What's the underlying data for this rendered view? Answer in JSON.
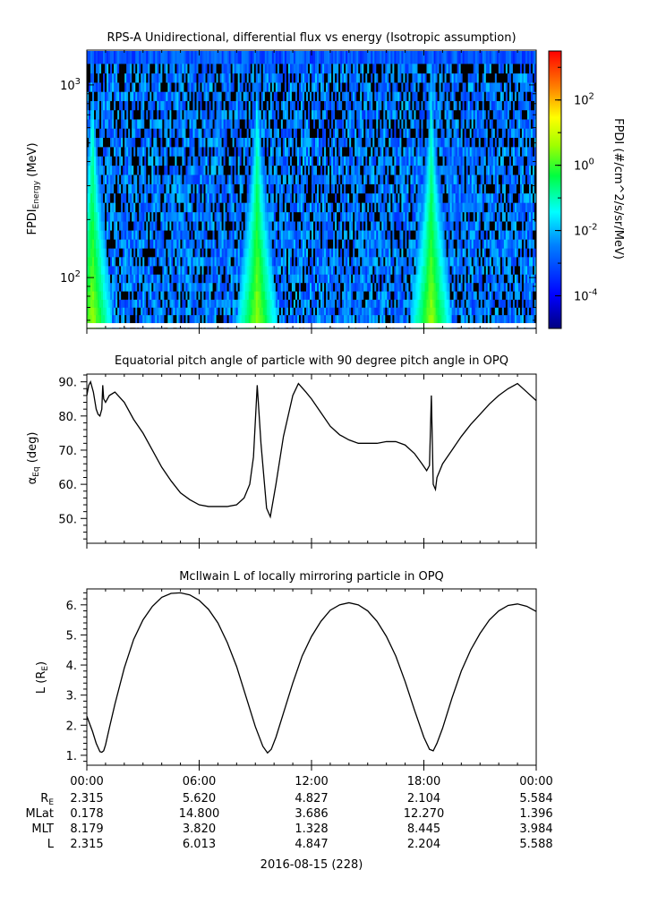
{
  "figure": {
    "date_label": "2016-08-15 (228)"
  },
  "chart_data": [
    {
      "type": "heatmap",
      "title": "RPS-A Unidirectional, differential flux vs energy (Isotropic assumption)",
      "ylabel_main": "FPDI",
      "ylabel_sub": "Energy",
      "ylabel_unit": " (MeV)",
      "y_scale": "log",
      "ylim": [
        55,
        1500
      ],
      "yticks": [
        {
          "value": 100,
          "base": "10",
          "exp": "2"
        },
        {
          "value": 1000,
          "base": "10",
          "exp": "3"
        }
      ],
      "energy_bins_mev": [
        58,
        64,
        70,
        77,
        85,
        94,
        104,
        115,
        128,
        142,
        158,
        176,
        196,
        219,
        245,
        274,
        306,
        342,
        382,
        427,
        477,
        533,
        595,
        664,
        741,
        827,
        923,
        1030,
        1150,
        1290
      ],
      "time_range_hours": [
        0,
        24
      ],
      "flux_peaks_hours": [
        0.3,
        9.1,
        18.4
      ],
      "colorbar": {
        "label": "FPDI (#/cm^2/s/sr/MeV)",
        "log10_range": [
          -5,
          3.5
        ],
        "ticks": [
          {
            "value": -4,
            "base": "10",
            "exp": "-4"
          },
          {
            "value": -2,
            "base": "10",
            "exp": "-2"
          },
          {
            "value": 0,
            "base": "10",
            "exp": "0"
          },
          {
            "value": 2,
            "base": "10",
            "exp": "2"
          }
        ]
      }
    },
    {
      "type": "line",
      "title": "Equatorial pitch angle of particle with 90 degree pitch angle in OPQ",
      "ylabel_main": "α",
      "ylabel_sub": "Eq",
      "ylabel_unit": " (deg)",
      "ylim": [
        43,
        92
      ],
      "yticks": [
        50,
        60,
        70,
        80,
        90
      ],
      "ytick_labels": [
        "50.",
        "60.",
        "70.",
        "80.",
        "90."
      ],
      "x_hours": [
        0,
        0.1,
        0.2,
        0.35,
        0.5,
        0.6,
        0.7,
        0.8,
        0.85,
        0.9,
        1.0,
        1.2,
        1.5,
        2.0,
        2.5,
        3.0,
        3.5,
        4.0,
        4.5,
        5.0,
        5.5,
        6.0,
        6.5,
        7.0,
        7.5,
        8.0,
        8.4,
        8.7,
        8.9,
        9.1,
        9.3,
        9.6,
        9.8,
        10.1,
        10.5,
        11.0,
        11.3,
        11.7,
        12.0,
        12.5,
        13.0,
        13.5,
        14.0,
        14.5,
        15.0,
        15.5,
        16.0,
        16.5,
        17.0,
        17.5,
        17.9,
        18.15,
        18.3,
        18.4,
        18.5,
        18.62,
        18.7,
        19.0,
        19.5,
        20.0,
        20.5,
        21.0,
        21.5,
        22.0,
        22.5,
        23.0,
        23.5,
        24.0
      ],
      "values": [
        86,
        89,
        90,
        87,
        82,
        80.5,
        80,
        82,
        89,
        85,
        84,
        86,
        87,
        84,
        79,
        75,
        70,
        65,
        61,
        57.5,
        55.5,
        54,
        53.5,
        53.5,
        53.5,
        54,
        56,
        60,
        68,
        89,
        72,
        53,
        50.5,
        60,
        74,
        86,
        89.5,
        87,
        85,
        81,
        77,
        74.5,
        73,
        72,
        72,
        72,
        72.5,
        72.5,
        71.5,
        69,
        66,
        64,
        65.5,
        86,
        60,
        58.5,
        62,
        66,
        70,
        74,
        77.5,
        80.5,
        83.5,
        86,
        88,
        89.5,
        87,
        84.5
      ]
    },
    {
      "type": "line",
      "title": "McIlwain L of locally mirroring particle in OPQ",
      "ylabel_main": "L (R",
      "ylabel_sub": "E",
      "ylabel_unit": ")",
      "ylim": [
        0.7,
        6.5
      ],
      "yticks": [
        1,
        2,
        3,
        4,
        5,
        6
      ],
      "ytick_labels": [
        "1.",
        "2.",
        "3.",
        "4.",
        "5.",
        "6."
      ],
      "x_hours": [
        0,
        0.3,
        0.5,
        0.7,
        0.8,
        0.9,
        1.0,
        1.2,
        1.5,
        2.0,
        2.5,
        3.0,
        3.5,
        4.0,
        4.5,
        5.0,
        5.5,
        6.0,
        6.5,
        7.0,
        7.5,
        8.0,
        8.5,
        9.0,
        9.4,
        9.65,
        9.85,
        10.1,
        10.5,
        11.0,
        11.5,
        12.0,
        12.5,
        13.0,
        13.5,
        14.0,
        14.5,
        15.0,
        15.5,
        16.0,
        16.5,
        17.0,
        17.5,
        18.0,
        18.3,
        18.5,
        18.7,
        19.0,
        19.5,
        20.0,
        20.5,
        21.0,
        21.5,
        22.0,
        22.5,
        23.0,
        23.5,
        24.0
      ],
      "values": [
        2.3,
        1.8,
        1.4,
        1.12,
        1.1,
        1.15,
        1.35,
        1.9,
        2.7,
        3.9,
        4.85,
        5.5,
        5.95,
        6.25,
        6.38,
        6.4,
        6.33,
        6.15,
        5.85,
        5.4,
        4.75,
        3.95,
        2.95,
        1.95,
        1.3,
        1.08,
        1.2,
        1.6,
        2.4,
        3.4,
        4.3,
        4.95,
        5.45,
        5.82,
        6.0,
        6.07,
        6.0,
        5.8,
        5.45,
        4.95,
        4.3,
        3.45,
        2.5,
        1.6,
        1.2,
        1.15,
        1.4,
        1.9,
        2.9,
        3.8,
        4.5,
        5.05,
        5.5,
        5.8,
        5.98,
        6.03,
        5.95,
        5.78
      ]
    }
  ],
  "xaxis": {
    "tick_hours": [
      0,
      6,
      12,
      18,
      24
    ],
    "tick_labels": [
      "00:00",
      "06:00",
      "12:00",
      "18:00",
      "00:00"
    ]
  },
  "ephemeris": {
    "rows": [
      {
        "label": "R",
        "sub": "E",
        "values": [
          "2.315",
          "5.620",
          "4.827",
          "2.104",
          "5.584"
        ]
      },
      {
        "label": "MLat",
        "sub": "",
        "values": [
          "0.178",
          "14.800",
          "3.686",
          "12.270",
          "1.396"
        ]
      },
      {
        "label": "MLT",
        "sub": "",
        "values": [
          "8.179",
          "3.820",
          "1.328",
          "8.445",
          "3.984"
        ]
      },
      {
        "label": "L",
        "sub": "",
        "values": [
          "2.315",
          "6.013",
          "4.847",
          "2.204",
          "5.588"
        ]
      }
    ]
  }
}
